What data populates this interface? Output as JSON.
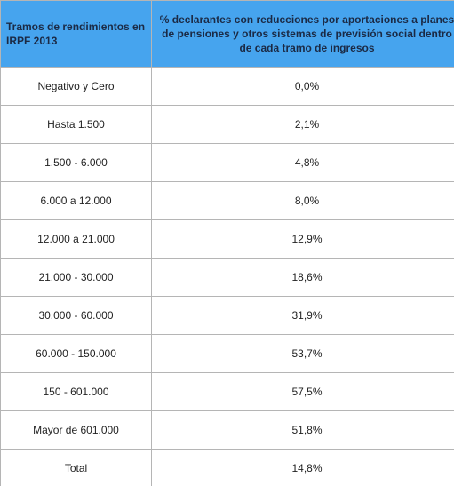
{
  "table": {
    "header": [
      "Tramos de rendimientos en IRPF 2013",
      "% declarantes con reducciones por aportaciones a planes de pensiones y otros sistemas de previsión social dentro de cada tramo de ingresos"
    ],
    "rows": [
      [
        "Negativo y Cero",
        "0,0%"
      ],
      [
        "Hasta 1.500",
        "2,1%"
      ],
      [
        "1.500 - 6.000",
        "4,8%"
      ],
      [
        "6.000 a 12.000",
        "8,0%"
      ],
      [
        "12.000 a 21.000",
        "12,9%"
      ],
      [
        "21.000 - 30.000",
        "18,6%"
      ],
      [
        "30.000 - 60.000",
        "31,9%"
      ],
      [
        "60.000 - 150.000",
        "53,7%"
      ],
      [
        "150 - 601.000",
        "57,5%"
      ],
      [
        "Mayor de 601.000",
        "51,8%"
      ],
      [
        "Total",
        "14,8%"
      ]
    ]
  }
}
